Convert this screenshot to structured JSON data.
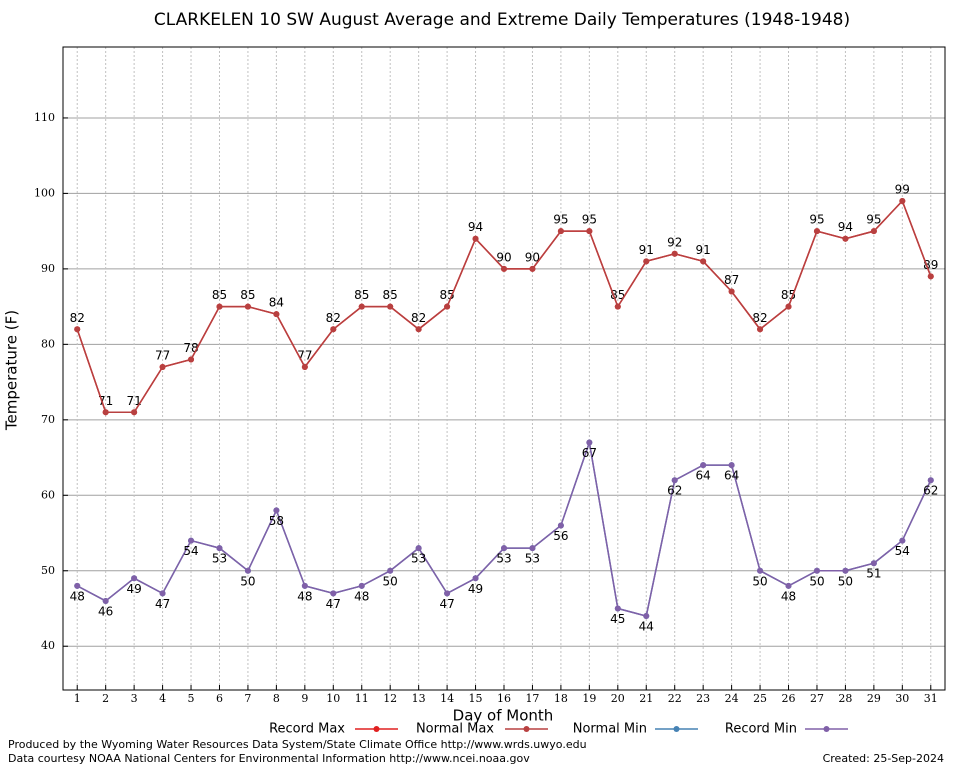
{
  "chart_data": {
    "type": "line",
    "title": "CLARKELEN 10 SW August Average and Extreme Daily Temperatures (1948-1948)",
    "x_label": "Day of Month",
    "y_label": "Temperature (F)",
    "x": [
      1,
      2,
      3,
      4,
      5,
      6,
      7,
      8,
      9,
      10,
      11,
      12,
      13,
      14,
      15,
      16,
      17,
      18,
      19,
      20,
      21,
      22,
      23,
      24,
      25,
      26,
      27,
      28,
      29,
      30,
      31
    ],
    "xlim": [
      0.5,
      31.5
    ],
    "xticks": [
      1,
      2,
      3,
      4,
      5,
      6,
      7,
      8,
      9,
      10,
      11,
      12,
      13,
      14,
      15,
      16,
      17,
      18,
      19,
      20,
      21,
      22,
      23,
      24,
      25,
      26,
      27,
      28,
      29,
      30,
      31
    ],
    "ylim": [
      34.2,
      119.4
    ],
    "yticks": [
      40,
      50,
      60,
      70,
      80,
      90,
      100,
      110
    ],
    "grid": true,
    "series": [
      {
        "name": "Record Max",
        "color": "#e02020",
        "values": [
          82,
          71,
          71,
          77,
          78,
          85,
          85,
          84,
          77,
          82,
          85,
          85,
          82,
          85,
          94,
          90,
          90,
          95,
          95,
          85,
          91,
          92,
          91,
          87,
          82,
          85,
          95,
          94,
          95,
          99,
          89
        ]
      },
      {
        "name": "Normal Max",
        "color": "#b84040",
        "values": [
          82,
          71,
          71,
          77,
          78,
          85,
          85,
          84,
          77,
          82,
          85,
          85,
          82,
          85,
          94,
          90,
          90,
          95,
          95,
          85,
          91,
          92,
          91,
          87,
          82,
          85,
          95,
          94,
          95,
          99,
          89
        ]
      },
      {
        "name": "Normal Min",
        "color": "#4682b4",
        "values": [
          48,
          46,
          49,
          47,
          54,
          53,
          50,
          58,
          48,
          47,
          48,
          50,
          53,
          47,
          49,
          53,
          53,
          56,
          67,
          45,
          44,
          62,
          64,
          64,
          50,
          48,
          50,
          50,
          51,
          54,
          62
        ]
      },
      {
        "name": "Record Min",
        "color": "#8060a8",
        "values": [
          48,
          46,
          49,
          47,
          54,
          53,
          50,
          58,
          48,
          47,
          48,
          50,
          53,
          47,
          49,
          53,
          53,
          56,
          67,
          45,
          44,
          62,
          64,
          64,
          50,
          48,
          50,
          50,
          51,
          54,
          62
        ]
      }
    ],
    "footer_left": [
      "Produced by the Wyoming Water Resources Data System/State Climate Office http://www.wrds.uwyo.edu",
      "Data courtesy NOAA National Centers for Environmental Information http://www.ncei.noaa.gov"
    ],
    "footer_right": "Created:  25-Sep-2024"
  }
}
